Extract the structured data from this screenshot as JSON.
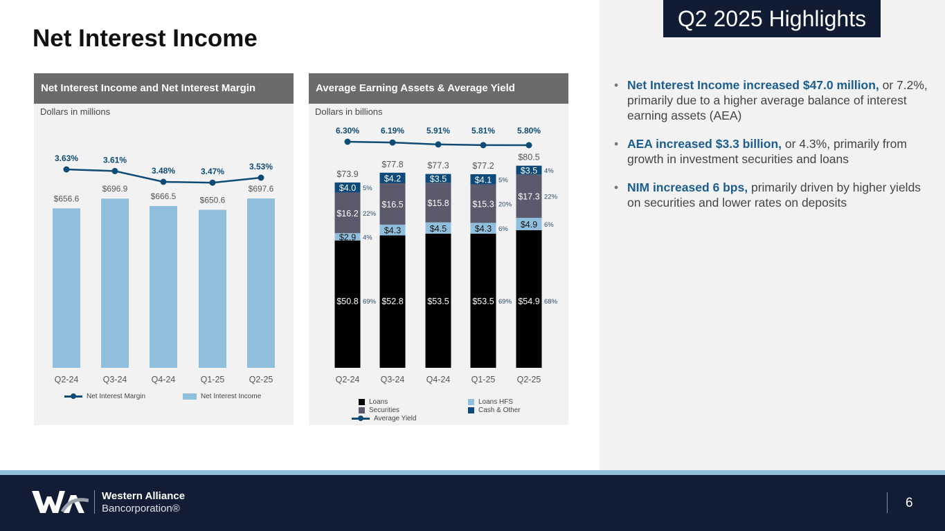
{
  "title": "Net Interest Income",
  "highlights_badge": "Q2 2025 Highlights",
  "panel1": {
    "header": "Net Interest Income and Net Interest Margin",
    "sub": "Dollars in millions",
    "legend": [
      "Net Interest Margin",
      "Net Interest Income"
    ]
  },
  "panel2": {
    "header": "Average Earning Assets & Average Yield",
    "sub": "Dollars in billions",
    "legend": [
      "Loans",
      "Loans HFS",
      "Securities",
      "Cash & Other",
      "Average Yield"
    ]
  },
  "bullets": [
    {
      "bold": "Net Interest Income increased $47.0 million,",
      "text": " or 7.2%, primarily due to a higher average balance of interest earning assets (AEA)"
    },
    {
      "bold": "AEA increased $3.3 billion,",
      "text": " or 4.3%, primarily from growth in investment securities and loans"
    },
    {
      "bold": "NIM increased 6 bps,",
      "text": " primarily driven by higher yields on securities and lower rates on deposits"
    }
  ],
  "footer": {
    "brand_line1": "Western Alliance",
    "brand_line2": "Bancorporation®",
    "page": "6"
  },
  "colors": {
    "loans": "#000000",
    "loans_hfs": "#8fbfdc",
    "securities": "#5b5a6c",
    "cash": "#0d4a7a",
    "line": "#0f4c75",
    "nii_bar": "#8fbfdc"
  },
  "chart_data": [
    {
      "type": "bar",
      "title": "Net Interest Income and Net Interest Margin",
      "categories": [
        "Q2-24",
        "Q3-24",
        "Q4-24",
        "Q1-25",
        "Q2-25"
      ],
      "series": [
        {
          "name": "Net Interest Income",
          "values": [
            656.6,
            696.9,
            666.5,
            650.6,
            697.6
          ],
          "labels": [
            "$656.6",
            "$696.9",
            "$666.5",
            "$650.6",
            "$697.6"
          ]
        },
        {
          "name": "Net Interest Margin",
          "type": "line",
          "values": [
            3.63,
            3.61,
            3.48,
            3.47,
            3.53
          ],
          "labels": [
            "3.63%",
            "3.61%",
            "3.48%",
            "3.47%",
            "3.53%"
          ]
        }
      ]
    },
    {
      "type": "bar",
      "stacked": true,
      "title": "Average Earning Assets & Average Yield",
      "categories": [
        "Q2-24",
        "Q3-24",
        "Q4-24",
        "Q1-25",
        "Q2-25"
      ],
      "totals": [
        "$73.9",
        "$77.8",
        "$77.3",
        "$77.2",
        "$80.5"
      ],
      "series": [
        {
          "name": "Loans",
          "values": [
            50.8,
            52.8,
            53.5,
            53.5,
            54.9
          ],
          "labels": [
            "$50.8",
            "$52.8",
            "$53.5",
            "$53.5",
            "$54.9"
          ],
          "pct": [
            "69%",
            "",
            "",
            "69%",
            "68%"
          ]
        },
        {
          "name": "Loans HFS",
          "values": [
            2.9,
            4.3,
            4.5,
            4.3,
            4.9
          ],
          "labels": [
            "$2.9",
            "$4.3",
            "$4.5",
            "$4.3",
            "$4.9"
          ],
          "pct": [
            "4%",
            "",
            "",
            "6%",
            "6%"
          ]
        },
        {
          "name": "Securities",
          "values": [
            16.2,
            16.5,
            15.8,
            15.3,
            17.3
          ],
          "labels": [
            "$16.2",
            "$16.5",
            "$15.8",
            "$15.3",
            "$17.3"
          ],
          "pct": [
            "22%",
            "",
            "",
            "20%",
            "22%"
          ]
        },
        {
          "name": "Cash & Other",
          "values": [
            4.0,
            4.2,
            3.5,
            4.1,
            3.5
          ],
          "labels": [
            "$4.0",
            "$4.2",
            "$3.5",
            "$4.1",
            "$3.5"
          ],
          "pct": [
            "5%",
            "",
            "",
            "5%",
            "4%"
          ]
        },
        {
          "name": "Average Yield",
          "type": "line",
          "values": [
            6.3,
            6.19,
            5.91,
            5.81,
            5.8
          ],
          "labels": [
            "6.30%",
            "6.19%",
            "5.91%",
            "5.81%",
            "5.80%"
          ]
        }
      ]
    }
  ]
}
